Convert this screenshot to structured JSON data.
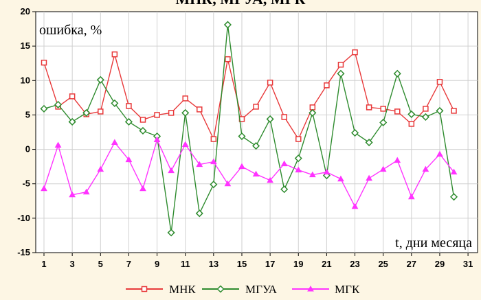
{
  "chart_data": {
    "type": "line",
    "title": "МНК, МГУА, МГК",
    "ylabel": "ошибка, %",
    "xlabel": "t, дни месяца",
    "xlim": [
      0,
      31
    ],
    "ylim": [
      -15,
      20
    ],
    "x_ticks": [
      1,
      3,
      5,
      7,
      9,
      11,
      13,
      15,
      17,
      19,
      21,
      23,
      25,
      27,
      29,
      31
    ],
    "y_ticks": [
      -15,
      -10,
      -5,
      0,
      5,
      10,
      15,
      20
    ],
    "grid": true,
    "legend_position": "bottom",
    "x": [
      1,
      2,
      3,
      4,
      5,
      6,
      7,
      8,
      9,
      10,
      11,
      12,
      13,
      14,
      15,
      16,
      17,
      18,
      19,
      20,
      21,
      22,
      23,
      24,
      25,
      26,
      27,
      28,
      29,
      30
    ],
    "series": [
      {
        "name": "МНК",
        "color": "#e8393a",
        "marker": "square",
        "values": [
          12.6,
          6.2,
          7.7,
          5.1,
          5.5,
          13.8,
          6.3,
          4.3,
          5.0,
          5.3,
          7.4,
          5.8,
          1.5,
          13.1,
          4.4,
          6.2,
          9.7,
          4.7,
          1.5,
          6.1,
          9.3,
          12.3,
          14.1,
          6.1,
          5.9,
          5.5,
          3.7,
          5.9,
          9.8,
          5.6
        ]
      },
      {
        "name": "МГУА",
        "color": "#2e8b2e",
        "marker": "diamond",
        "values": [
          5.9,
          6.5,
          4.0,
          5.3,
          10.1,
          6.7,
          4.0,
          2.7,
          1.9,
          -12.1,
          5.3,
          -9.3,
          -5.1,
          18.1,
          1.9,
          0.5,
          4.4,
          -5.8,
          -1.3,
          5.3,
          -3.8,
          11.0,
          2.4,
          1.0,
          3.9,
          11.0,
          5.1,
          4.7,
          5.6,
          -6.9
        ]
      },
      {
        "name": "МГК",
        "color": "#ff33ff",
        "marker": "triangle",
        "values": [
          -5.7,
          0.6,
          -6.6,
          -6.2,
          -2.9,
          1.0,
          -1.5,
          -5.7,
          1.4,
          -3.1,
          0.7,
          -2.2,
          -1.8,
          -5.0,
          -2.5,
          -3.6,
          -4.5,
          -2.1,
          -3.0,
          -3.7,
          -3.3,
          -4.3,
          -8.3,
          -4.2,
          -2.9,
          -1.6,
          -6.9,
          -2.9,
          -0.7,
          -3.3
        ]
      }
    ]
  }
}
